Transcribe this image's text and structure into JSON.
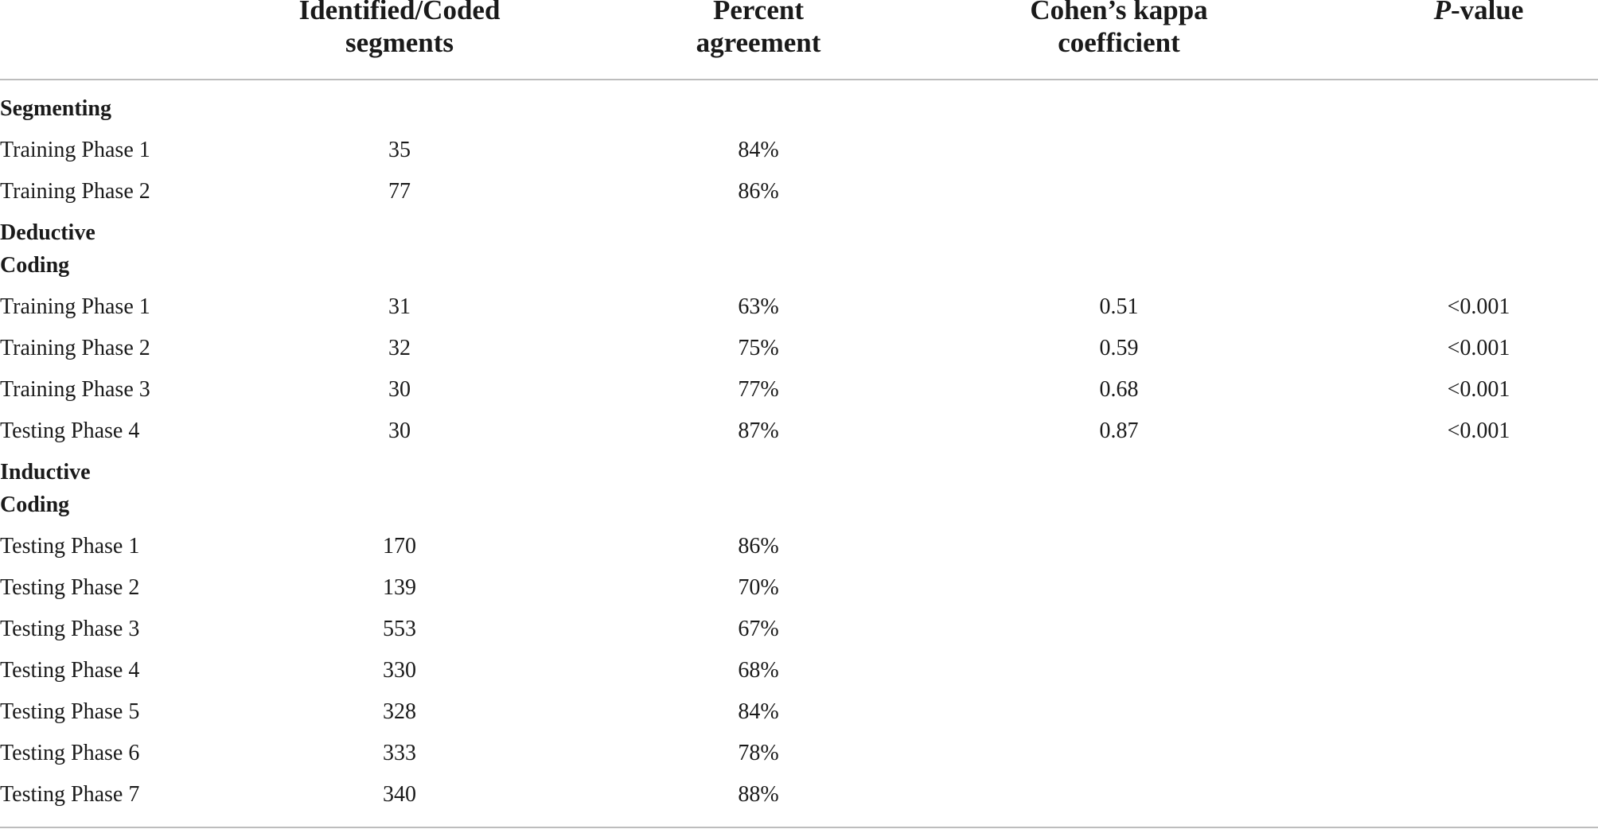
{
  "table": {
    "headers": {
      "segments": [
        "Identified/Coded",
        "segments"
      ],
      "percent": [
        "Percent",
        "agreement"
      ],
      "kappa": [
        "Cohen’s kappa",
        "coefficient"
      ],
      "pvalue_italic": "P",
      "pvalue_rest": "-value"
    },
    "sections": [
      {
        "title_lines": [
          "Segmenting"
        ],
        "rows": [
          {
            "label": "Training Phase 1",
            "segments": "35",
            "percent": "84%",
            "kappa": "",
            "pvalue": ""
          },
          {
            "label": "Training Phase 2",
            "segments": "77",
            "percent": "86%",
            "kappa": "",
            "pvalue": ""
          }
        ]
      },
      {
        "title_lines": [
          "Deductive",
          "Coding"
        ],
        "rows": [
          {
            "label": "Training Phase 1",
            "segments": "31",
            "percent": "63%",
            "kappa": "0.51",
            "pvalue": "<0.001"
          },
          {
            "label": "Training Phase 2",
            "segments": "32",
            "percent": "75%",
            "kappa": "0.59",
            "pvalue": "<0.001"
          },
          {
            "label": "Training Phase 3",
            "segments": "30",
            "percent": "77%",
            "kappa": "0.68",
            "pvalue": "<0.001"
          },
          {
            "label": "Testing Phase 4",
            "segments": "30",
            "percent": "87%",
            "kappa": "0.87",
            "pvalue": "<0.001"
          }
        ]
      },
      {
        "title_lines": [
          "Inductive",
          "Coding"
        ],
        "rows": [
          {
            "label": "Testing Phase 1",
            "segments": "170",
            "percent": "86%",
            "kappa": "",
            "pvalue": ""
          },
          {
            "label": "Testing Phase 2",
            "segments": "139",
            "percent": "70%",
            "kappa": "",
            "pvalue": ""
          },
          {
            "label": "Testing Phase 3",
            "segments": "553",
            "percent": "67%",
            "kappa": "",
            "pvalue": ""
          },
          {
            "label": "Testing Phase 4",
            "segments": "330",
            "percent": "68%",
            "kappa": "",
            "pvalue": ""
          },
          {
            "label": "Testing Phase 5",
            "segments": "328",
            "percent": "84%",
            "kappa": "",
            "pvalue": ""
          },
          {
            "label": "Testing Phase 6",
            "segments": "333",
            "percent": "78%",
            "kappa": "",
            "pvalue": ""
          },
          {
            "label": "Testing Phase 7",
            "segments": "340",
            "percent": "88%",
            "kappa": "",
            "pvalue": ""
          }
        ]
      }
    ]
  }
}
